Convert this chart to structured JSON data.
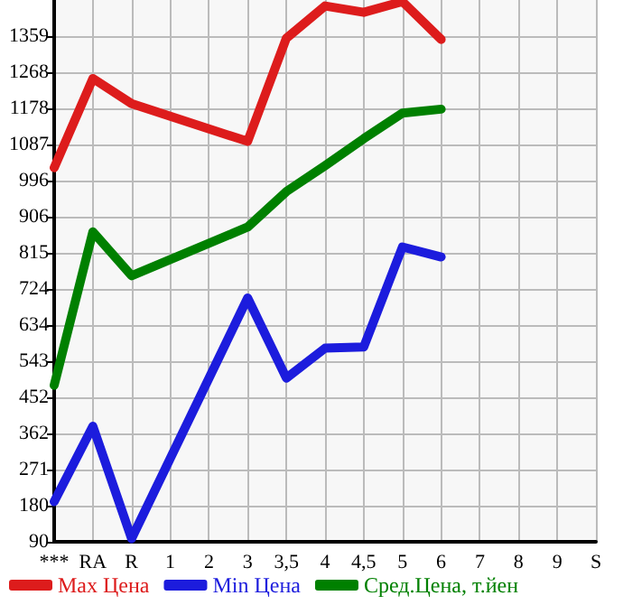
{
  "chart_data": {
    "type": "line",
    "categories": [
      "***",
      "RA",
      "R",
      "1",
      "2",
      "3",
      "3,5",
      "4",
      "4,5",
      "5",
      "6",
      "7",
      "8",
      "9",
      "S"
    ],
    "series": [
      {
        "name": "Max Цена",
        "color": "#dd1c1c",
        "values": [
          1029,
          1253,
          1190,
          null,
          null,
          1095,
          1354,
          1435,
          1419,
          1446,
          1351,
          null,
          null,
          null,
          null
        ]
      },
      {
        "name": "Min Цена",
        "color": "#1c1cdd",
        "values": [
          191,
          380,
          98,
          null,
          null,
          702,
          501,
          576,
          579,
          830,
          805,
          null,
          null,
          null,
          null
        ]
      },
      {
        "name": "Сред.Цена, т.йен",
        "color": "#008000",
        "values": [
          483,
          868,
          758,
          null,
          null,
          880,
          969,
          1034,
          1102,
          1166,
          1176,
          null,
          null,
          null,
          null
        ]
      }
    ],
    "ylim": [
      90,
      1450
    ],
    "yticks": [
      90,
      180,
      271,
      362,
      452,
      543,
      634,
      724,
      815,
      906,
      996,
      1087,
      1178,
      1268,
      1359
    ],
    "grid": true,
    "legend": "bottom",
    "marker": "none",
    "line_style": "solid"
  }
}
